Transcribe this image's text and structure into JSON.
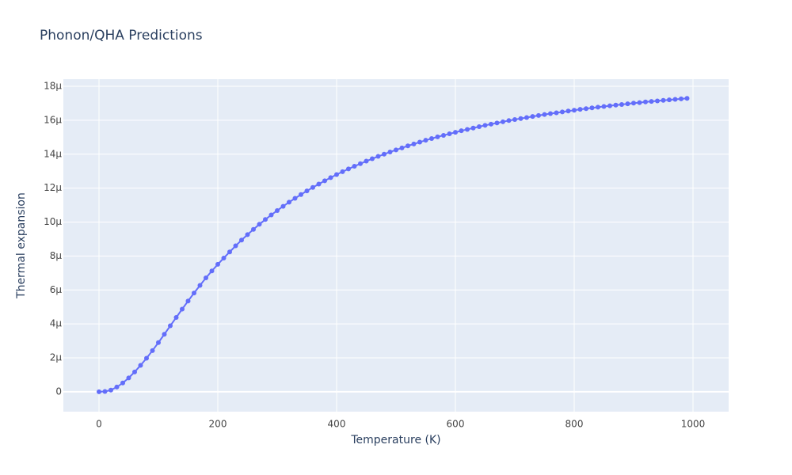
{
  "chart_data": {
    "type": "scatter",
    "mode": "lines+markers",
    "title": "Phonon/QHA Predictions",
    "x_label": "Temperature (K)",
    "y_label": "Thermal expansion",
    "xlim": [
      -60,
      1060
    ],
    "ylim": [
      -1.17e-06,
      1.842e-05
    ],
    "xticks": [
      0,
      200,
      400,
      600,
      800,
      1000
    ],
    "yticks": [
      0,
      {
        "value": 2e-06,
        "label": "2μ"
      },
      {
        "value": 4e-06,
        "label": "4μ"
      },
      {
        "value": 6e-06,
        "label": "6μ"
      },
      {
        "value": 8e-06,
        "label": "8μ"
      },
      {
        "value": 1e-05,
        "label": "10μ"
      },
      {
        "value": 1.2e-05,
        "label": "12μ"
      },
      {
        "value": 1.4e-05,
        "label": "14μ"
      },
      {
        "value": 1.6e-05,
        "label": "16μ"
      },
      {
        "value": 1.8e-05,
        "label": "18μ"
      }
    ],
    "grid": true,
    "background": "#e5ecf6",
    "x": [
      0,
      10,
      20,
      30,
      40,
      50,
      60,
      70,
      80,
      90,
      100,
      110,
      120,
      130,
      140,
      150,
      160,
      170,
      180,
      190,
      200,
      210,
      220,
      230,
      240,
      250,
      260,
      270,
      280,
      290,
      300,
      310,
      320,
      330,
      340,
      350,
      360,
      370,
      380,
      390,
      400,
      410,
      420,
      430,
      440,
      450,
      460,
      470,
      480,
      490,
      500,
      510,
      520,
      530,
      540,
      550,
      560,
      570,
      580,
      590,
      600,
      610,
      620,
      630,
      640,
      650,
      660,
      670,
      680,
      690,
      700,
      710,
      720,
      730,
      740,
      750,
      760,
      770,
      780,
      790,
      800,
      810,
      820,
      830,
      840,
      850,
      860,
      870,
      880,
      890,
      900,
      910,
      920,
      930,
      940,
      950,
      960,
      970,
      980,
      990
    ],
    "series": [
      {
        "color": "#636efa",
        "values": [
          0,
          2e-08,
          1e-07,
          2.8e-07,
          5.2e-07,
          8.2e-07,
          1.17e-06,
          1.56e-06,
          1.98e-06,
          2.43e-06,
          2.9e-06,
          3.39e-06,
          3.89e-06,
          4.38e-06,
          4.87e-06,
          5.35e-06,
          5.82e-06,
          6.27e-06,
          6.71e-06,
          7.12e-06,
          7.51e-06,
          7.88e-06,
          8.24e-06,
          8.6e-06,
          8.94e-06,
          9.26e-06,
          9.57e-06,
          9.87e-06,
          1.015e-05,
          1.042e-05,
          1.068e-05,
          1.093e-05,
          1.117e-05,
          1.14e-05,
          1.162e-05,
          1.184e-05,
          1.204e-05,
          1.224e-05,
          1.243e-05,
          1.262e-05,
          1.28e-05,
          1.297e-05,
          1.313e-05,
          1.329e-05,
          1.344e-05,
          1.359e-05,
          1.373e-05,
          1.387e-05,
          1.4e-05,
          1.413e-05,
          1.425e-05,
          1.437e-05,
          1.449e-05,
          1.46e-05,
          1.471e-05,
          1.482e-05,
          1.492e-05,
          1.502e-05,
          1.511e-05,
          1.52e-05,
          1.529e-05,
          1.538e-05,
          1.546e-05,
          1.554e-05,
          1.562e-05,
          1.57e-05,
          1.577e-05,
          1.584e-05,
          1.591e-05,
          1.598e-05,
          1.604e-05,
          1.61e-05,
          1.616e-05,
          1.622e-05,
          1.628e-05,
          1.634e-05,
          1.639e-05,
          1.644e-05,
          1.649e-05,
          1.654e-05,
          1.659e-05,
          1.664e-05,
          1.668e-05,
          1.673e-05,
          1.677e-05,
          1.681e-05,
          1.685e-05,
          1.689e-05,
          1.693e-05,
          1.697e-05,
          1.701e-05,
          1.704e-05,
          1.708e-05,
          1.711e-05,
          1.714e-05,
          1.717e-05,
          1.72e-05,
          1.723e-05,
          1.726e-05,
          1.729e-05
        ]
      }
    ]
  }
}
